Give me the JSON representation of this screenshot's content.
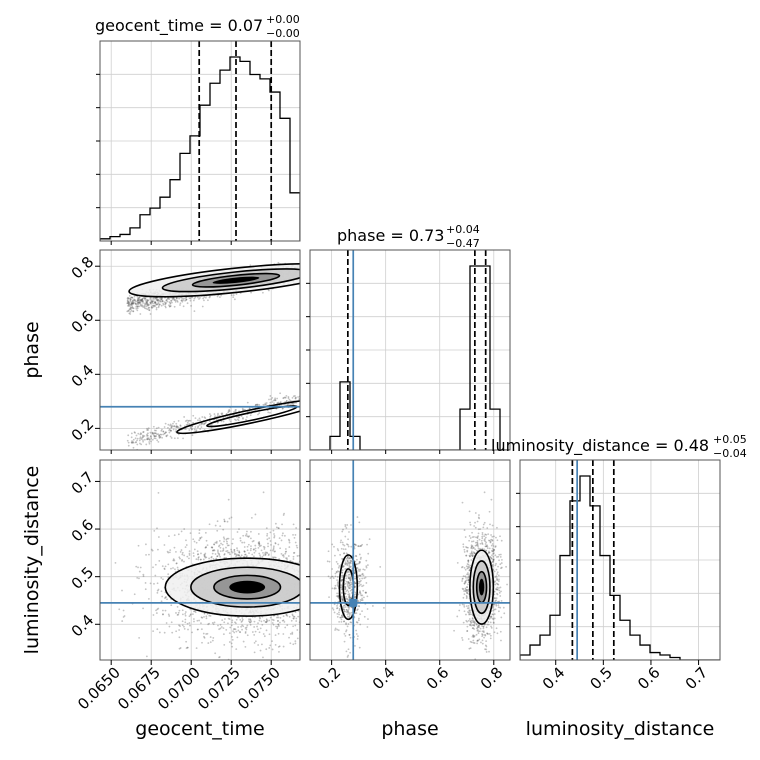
{
  "chart_data": {
    "type": "scatter",
    "description_free": true,
    "parameters": [
      "geocent_time",
      "phase",
      "luminosity_distance"
    ],
    "axis_labels": {
      "x": [
        "geocent_time",
        "phase",
        "luminosity_distance"
      ],
      "y": [
        "phase",
        "luminosity_distance"
      ]
    },
    "titles": [
      {
        "param": "geocent_time",
        "prefix": "geocent_time = 0.07",
        "upper": "+0.00",
        "lower": "−0.00"
      },
      {
        "param": "phase",
        "prefix": "phase = 0.73",
        "upper": "+0.04",
        "lower": "−0.47"
      },
      {
        "param": "luminosity_distance",
        "prefix": "luminosity_distance = 0.48",
        "upper": "+0.05",
        "lower": "−0.04"
      }
    ],
    "ranges": {
      "geocent_time": [
        0.0643,
        0.0768
      ],
      "phase": [
        0.12,
        0.86
      ],
      "luminosity_distance": [
        0.325,
        0.745
      ]
    },
    "ticks": {
      "geocent_time": [
        "0.0650",
        "0.0675",
        "0.0700",
        "0.0725",
        "0.0750"
      ],
      "phase": [
        "0.2",
        "0.4",
        "0.6",
        "0.8"
      ],
      "luminosity_distance": [
        "0.4",
        "0.5",
        "0.6",
        "0.7"
      ]
    },
    "tick_values": {
      "geocent_time": [
        0.065,
        0.0675,
        0.07,
        0.0725,
        0.075
      ],
      "phase": [
        0.2,
        0.4,
        0.6,
        0.8
      ],
      "luminosity_distance": [
        0.4,
        0.5,
        0.6,
        0.7
      ]
    },
    "truths": {
      "geocent_time": null,
      "phase": 0.28,
      "luminosity_distance": 0.445
    },
    "quantiles": {
      "geocent_time": [
        0.0705,
        0.0728,
        0.075
      ],
      "phase": [
        0.26,
        0.73,
        0.77
      ],
      "luminosity_distance": [
        0.435,
        0.478,
        0.522
      ]
    },
    "histograms": {
      "geocent_time": {
        "bins": 20,
        "counts": [
          0.5,
          1,
          1.5,
          3,
          6,
          7.5,
          10,
          14,
          20,
          24,
          31,
          36,
          39,
          42,
          41,
          38,
          37,
          34,
          28,
          11
        ]
      },
      "phase": {
        "bins": 20,
        "counts": [
          0,
          0,
          2,
          10,
          2,
          0,
          0,
          0,
          0,
          0,
          0,
          0,
          0,
          0,
          0,
          6,
          27,
          27,
          6,
          0
        ]
      },
      "luminosity_distance": {
        "bins": 20,
        "counts": [
          1,
          3,
          5,
          9,
          21,
          32,
          37,
          31,
          21,
          13,
          8,
          5,
          3,
          1.5,
          1,
          0.5,
          0,
          0,
          0,
          0
        ]
      }
    },
    "colors": {
      "truth": "#4682b4",
      "contour": "#000000",
      "points": "#555555"
    },
    "grid": true
  }
}
